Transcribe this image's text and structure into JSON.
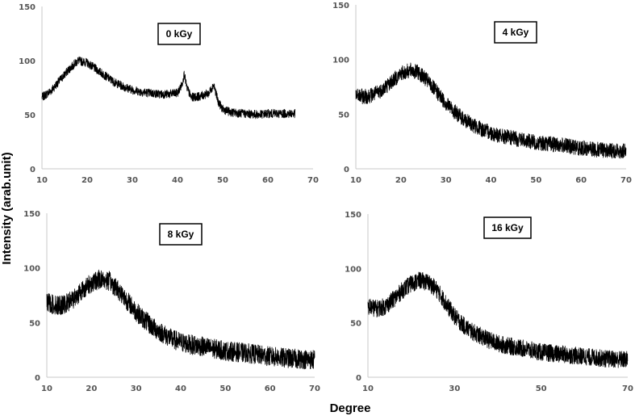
{
  "figure": {
    "ylabel": "Intensity (arab.unit)",
    "xlabel": "Degree"
  },
  "chart_data": [
    {
      "type": "line",
      "panel_label": "0 kGy",
      "xlim": [
        10,
        70
      ],
      "ylim": [
        0,
        150
      ],
      "x_ticks": [
        "10",
        "20",
        "30",
        "40",
        "50",
        "60",
        "70"
      ],
      "y_ticks": [
        "0",
        "50",
        "100",
        "150"
      ],
      "x_end": 66,
      "noise": 4,
      "series": [
        {
          "x": [
            10,
            12,
            14,
            16,
            18,
            20,
            22,
            24,
            26,
            28,
            30,
            32,
            34,
            36,
            38,
            40,
            41,
            41.5,
            42,
            43,
            45,
            47,
            48,
            49,
            50,
            52,
            55,
            58,
            60,
            63,
            66
          ],
          "y": [
            66,
            72,
            82,
            92,
            100,
            98,
            92,
            86,
            80,
            76,
            73,
            71,
            70,
            69,
            69,
            70,
            78,
            88,
            76,
            66,
            67,
            70,
            78,
            62,
            55,
            52,
            51,
            50,
            51,
            51,
            51
          ]
        }
      ]
    },
    {
      "type": "line",
      "panel_label": "4 kGy",
      "xlim": [
        10,
        70
      ],
      "ylim": [
        0,
        150
      ],
      "x_ticks": [
        "10",
        "20",
        "30",
        "40",
        "50",
        "60",
        "70"
      ],
      "y_ticks": [
        "0",
        "50",
        "100",
        "150"
      ],
      "x_end": 70,
      "noise": 7,
      "series": [
        {
          "x": [
            10,
            12,
            14,
            16,
            18,
            20,
            22,
            24,
            26,
            28,
            30,
            32,
            34,
            36,
            38,
            40,
            42,
            45,
            50,
            55,
            60,
            65,
            70
          ],
          "y": [
            67,
            66,
            68,
            73,
            80,
            87,
            90,
            88,
            80,
            70,
            60,
            52,
            45,
            40,
            36,
            33,
            30,
            28,
            24,
            22,
            19,
            17,
            16
          ]
        }
      ]
    },
    {
      "type": "line",
      "panel_label": "8 kGy",
      "xlim": [
        10,
        70
      ],
      "ylim": [
        0,
        150
      ],
      "x_ticks": [
        "10",
        "20",
        "30",
        "40",
        "50",
        "60",
        "70"
      ],
      "y_ticks": [
        "0",
        "50",
        "100",
        "150"
      ],
      "x_end": 70,
      "noise": 9,
      "series": [
        {
          "x": [
            10,
            12,
            14,
            16,
            18,
            20,
            22,
            24,
            26,
            28,
            30,
            32,
            34,
            36,
            38,
            40,
            42,
            45,
            50,
            55,
            60,
            65,
            70
          ],
          "y": [
            68,
            66,
            66,
            72,
            80,
            86,
            90,
            88,
            80,
            70,
            60,
            52,
            45,
            40,
            35,
            32,
            30,
            28,
            24,
            22,
            19,
            17,
            16
          ]
        }
      ]
    },
    {
      "type": "line",
      "panel_label": "16 kGy",
      "xlim": [
        10,
        70
      ],
      "ylim": [
        0,
        150
      ],
      "x_ticks": [
        "10",
        "30",
        "50",
        "70"
      ],
      "y_ticks": [
        "0",
        "50",
        "100",
        "150"
      ],
      "x_end": 70,
      "noise": 8,
      "series": [
        {
          "x": [
            10,
            12,
            14,
            16,
            18,
            20,
            22,
            24,
            26,
            28,
            30,
            32,
            34,
            36,
            38,
            40,
            42,
            45,
            50,
            55,
            60,
            65,
            70
          ],
          "y": [
            65,
            63,
            65,
            72,
            80,
            86,
            89,
            87,
            80,
            68,
            56,
            48,
            42,
            38,
            34,
            31,
            29,
            27,
            23,
            21,
            19,
            17,
            16
          ]
        }
      ]
    }
  ]
}
